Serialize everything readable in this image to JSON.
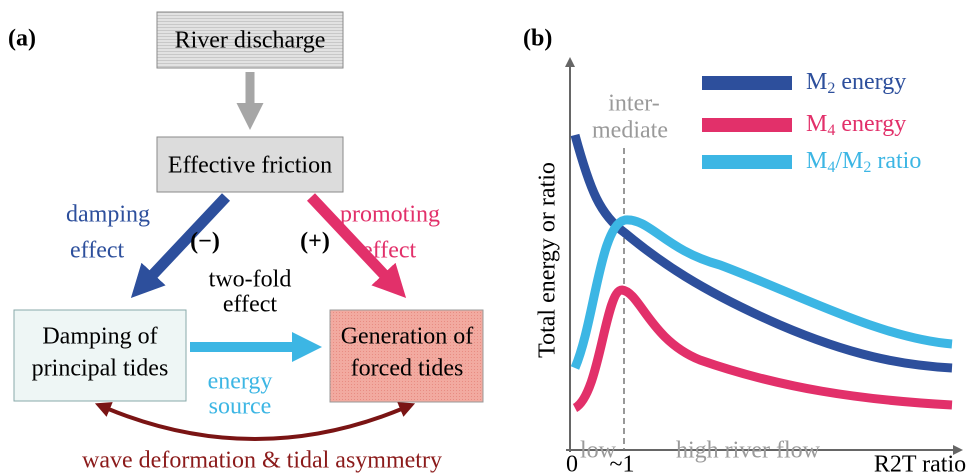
{
  "panel_a": {
    "label": "(a)",
    "nodes": {
      "river": "River discharge",
      "friction": "Effective friction",
      "damping": [
        "Damping of",
        "principal tides"
      ],
      "generation": [
        "Generation of",
        "forced tides"
      ]
    },
    "labels": {
      "damping_effect": [
        "damping",
        "effect"
      ],
      "promoting_effect": [
        "promoting",
        "effect"
      ],
      "minus": "(−)",
      "plus": "(+)",
      "two_fold": [
        "two-fold",
        "effect"
      ],
      "energy_source": [
        "energy",
        "source"
      ],
      "caption": "wave deformation & tidal asymmetry"
    }
  },
  "panel_b": {
    "label": "(b)",
    "y_label": "Total energy or ratio",
    "x_label": "R2T ratio",
    "x_ticks": [
      "0",
      "~1"
    ],
    "regions": {
      "intermediate": [
        "inter-",
        "mediate"
      ],
      "low": "low",
      "high": "high river flow"
    },
    "legend": [
      [
        "M",
        "2",
        " energy"
      ],
      [
        "M",
        "4",
        " energy"
      ],
      [
        "M",
        "4",
        "/M",
        "2",
        " ratio"
      ]
    ]
  }
}
